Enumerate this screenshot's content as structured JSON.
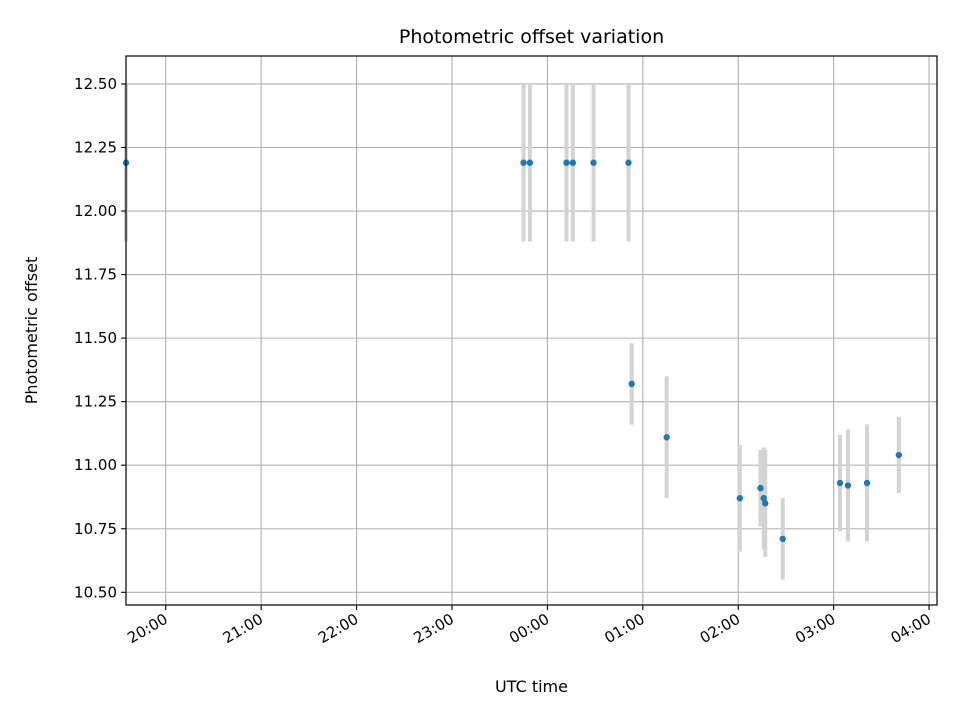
{
  "chart_data": {
    "type": "scatter",
    "title": "Photometric offset variation",
    "xlabel": "UTC time",
    "ylabel": "Photometric offset",
    "x_unit": "UTC time (HH:MM)",
    "xlim": [
      "19:35",
      "04:05"
    ],
    "ylim": [
      10.45,
      12.61
    ],
    "grid": true,
    "x_ticks": [
      "20:00",
      "21:00",
      "22:00",
      "23:00",
      "00:00",
      "01:00",
      "02:00",
      "03:00",
      "04:00"
    ],
    "y_ticks": [
      "10.50",
      "10.75",
      "11.00",
      "11.25",
      "11.50",
      "11.75",
      "12.00",
      "12.25",
      "12.50"
    ],
    "colors": {
      "point": "#1f77b4",
      "errorbar": "#d3d3d3",
      "grid": "#b0b0b0"
    },
    "series": [
      {
        "x": [
          "19:35",
          "23:45",
          "23:49",
          "00:12",
          "00:16",
          "00:29",
          "00:51",
          "00:53",
          "01:15",
          "02:01",
          "02:14",
          "02:16",
          "02:17",
          "02:28",
          "03:04",
          "03:09",
          "03:21",
          "03:41"
        ],
        "y": [
          12.19,
          12.19,
          12.19,
          12.19,
          12.19,
          12.19,
          12.19,
          11.32,
          11.11,
          10.87,
          10.91,
          10.87,
          10.85,
          10.71,
          10.93,
          10.92,
          10.93,
          11.04
        ],
        "yerr": [
          0.31,
          0.31,
          0.31,
          0.31,
          0.31,
          0.31,
          0.31,
          0.16,
          0.24,
          0.21,
          0.15,
          0.2,
          0.21,
          0.16,
          0.19,
          0.22,
          0.23,
          0.15
        ]
      }
    ]
  }
}
